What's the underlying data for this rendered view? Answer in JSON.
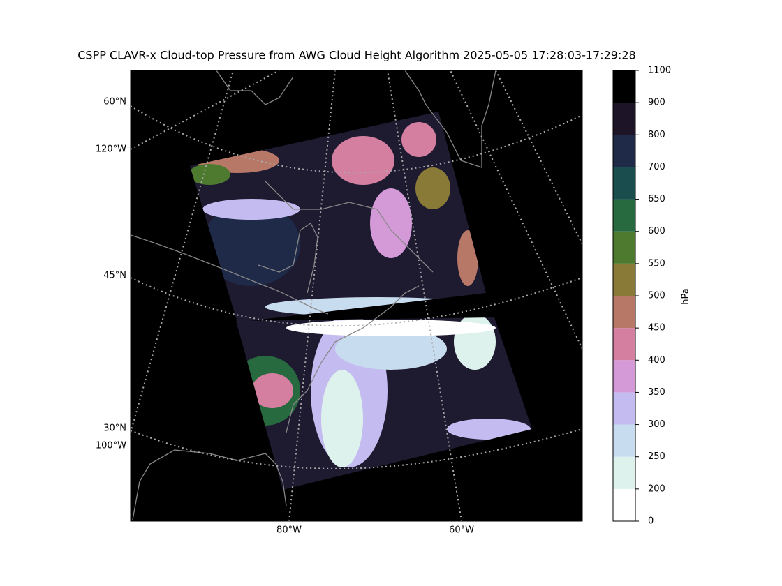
{
  "title": "CSPP CLAVR-x Cloud-top Pressure from AWG Cloud Height Algorithm 2025-05-05 17:28:03-17:29:28",
  "map": {
    "lat_labels": [
      "60°N",
      "45°N",
      "30°N"
    ],
    "lon_labels_left": [
      "120°W",
      "100°W"
    ],
    "lon_labels_bottom": [
      "80°W",
      "60°W"
    ]
  },
  "colorbar": {
    "label": "hPa",
    "ticks": [
      0,
      200,
      250,
      300,
      350,
      400,
      450,
      500,
      550,
      600,
      650,
      700,
      800,
      900,
      1100
    ],
    "colors": [
      "#ffffff",
      "#ddf2ec",
      "#c8dcf0",
      "#c4bcf0",
      "#d49ad8",
      "#d47fa0",
      "#b87868",
      "#8a7a38",
      "#4e7a30",
      "#286a40",
      "#1a4e4e",
      "#1e2a48",
      "#1e1428",
      "#000000"
    ]
  }
}
